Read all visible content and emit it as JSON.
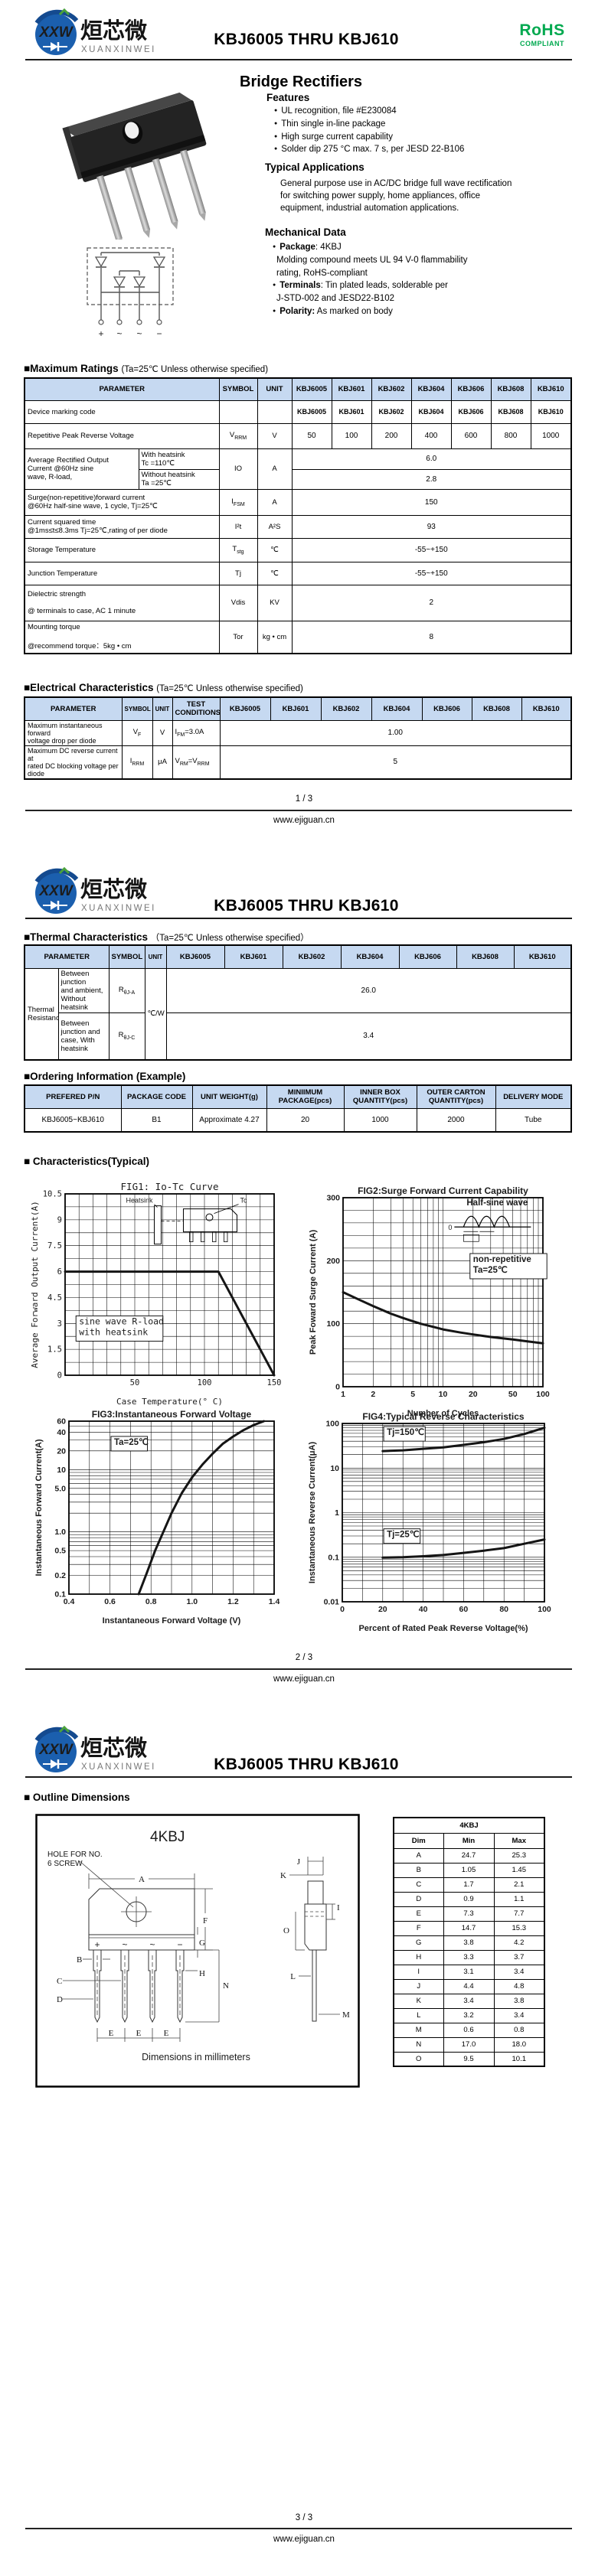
{
  "brand": {
    "logo_monogram": "XXW",
    "logo_cn": "烜芯微",
    "logo_en": "XUANXINWEI",
    "doc_title": "KBJ6005 THRU KBJ610",
    "rohs": "RoHS",
    "rohs_sub": "COMPLIANT",
    "colors": {
      "brand_blue": "#1b5fae",
      "rohs_green": "#00a94f",
      "table_header": "#c6d9f1"
    }
  },
  "models": [
    "KBJ6005",
    "KBJ601",
    "KBJ602",
    "KBJ604",
    "KBJ606",
    "KBJ608",
    "KBJ610"
  ],
  "page1": {
    "product_title": "Bridge Rectifiers",
    "features": {
      "title": "Features",
      "items": [
        {
          "m": "●",
          "t": "UL recognition, file #E230084"
        },
        {
          "m": "●",
          "t": "Thin single in-line package"
        },
        {
          "m": "●",
          "t": "High surge current capability"
        },
        {
          "m": "●",
          "t": "Solder dip 275 °C max. 7 s, per JESD 22-B106"
        }
      ]
    },
    "applications": {
      "title": "Typical  Applications",
      "text": "General purpose use in AC/DC bridge full wave rectification\nfor switching power supply, home appliances, office\nequipment, industrial automation applications."
    },
    "mechanical": {
      "title": "Mechanical Data",
      "items": [
        {
          "m": "●",
          "b": "Package",
          "t": ": 4KBJ"
        },
        {
          "m": "",
          "b": "",
          "t": "Molding compound meets UL 94 V-0 flammability"
        },
        {
          "m": "",
          "b": "",
          "t": "rating, RoHS-compliant"
        },
        {
          "m": "●",
          "b": "Terminals",
          "t": ": Tin plated leads, solderable per"
        },
        {
          "m": "",
          "b": "",
          "t": "J-STD-002 and JESD22-B102"
        },
        {
          "m": "●",
          "b": "Polarity:",
          "t": " As marked on body"
        }
      ]
    },
    "schematic_terminals": [
      "+",
      "~",
      "~",
      "−"
    ],
    "max_ratings": {
      "title": "■Maximum Ratings",
      "subtitle": "(Ta=25℃ Unless otherwise specified)",
      "col_param": "PARAMETER",
      "col_symbol": "SYMBOL",
      "col_unit": "UNIT",
      "rows": {
        "marking": {
          "param": "Device marking code"
        },
        "vrrm": {
          "param": "Repetitive Peak Reverse Voltage",
          "sym": {
            "p": "V",
            "s": "RRM"
          },
          "unit": "V",
          "values": [
            "50",
            "100",
            "200",
            "400",
            "600",
            "800",
            "1000"
          ]
        },
        "io": {
          "param": "Average Rectified Output\nCurrent @60Hz sine\nwave, R-load,",
          "sub1": "With heatsink\nTc =110℃",
          "sub2": "Without heatsink\nTa =25℃",
          "sym": {
            "p": "IO"
          },
          "unit": "A",
          "v1": "6.0",
          "v2": "2.8"
        },
        "ifsm": {
          "param": "Surge(non-repetitive)forward current\n@60Hz half-sine wave, 1 cycle,  Tj=25℃",
          "sym": {
            "p": "I",
            "s": "FSM"
          },
          "unit": "A",
          "value": "150"
        },
        "i2t": {
          "param": "Current squared time\n@1ms≤t≤8.3ms Tj=25℃,rating of per diode",
          "sym": {
            "p": "I²t"
          },
          "unit": "A²S",
          "value": "93"
        },
        "tstg": {
          "param": "Storage Temperature",
          "sym": {
            "p": "T",
            "s": "stg"
          },
          "unit": "℃",
          "value": "-55~+150"
        },
        "tj": {
          "param": "Junction Temperature",
          "sym": {
            "p": "Tj"
          },
          "unit": "℃",
          "value": "-55~+150"
        },
        "vdis": {
          "param": "Dielectric strength\n\n@ terminals to case, AC 1 minute",
          "sym": {
            "p": "Vdis"
          },
          "unit": "KV",
          "value": "2"
        },
        "tor": {
          "param": "Mounting torque\n\n@recommend torque：5kg • cm",
          "sym": {
            "p": "Tor"
          },
          "unit": "kg • cm",
          "value": "8"
        }
      }
    },
    "elec": {
      "title": "■Electrical Characteristics",
      "subtitle": "(Ta=25℃ Unless otherwise specified)",
      "col_param": "PARAMETER",
      "col_symbol": "SYMBOL",
      "col_unit": "UNIT",
      "col_test": "TEST\nCONDITIONS",
      "rows": {
        "vf": {
          "param": "Maximum instantaneous forward\nvoltage drop per diode",
          "sym": {
            "p": "V",
            "s": "F"
          },
          "unit": "V",
          "test": {
            "p": "I",
            "s": "FM",
            "t": "=3.0A"
          },
          "value": "1.00"
        },
        "irrm": {
          "param": "Maximum DC reverse current at\nrated DC blocking voltage per diode",
          "sym": {
            "p": "I",
            "s": "RRM"
          },
          "unit": "μA",
          "test": {
            "p": "V",
            "s": "RM",
            "t": "=V",
            "s2": "RRM"
          },
          "value": "5"
        }
      }
    },
    "footer": {
      "page": "1 / 3",
      "site": "www.ejiguan.cn"
    }
  },
  "page2": {
    "thermal": {
      "title": "■Thermal Characteristics",
      "subtitle": "（Ta=25℃ Unless otherwise specified）",
      "col_param": "PARAMETER",
      "col_symbol": "SYMBOL",
      "col_unit": "UNIT",
      "group": "Thermal\nResistance",
      "unit": "℃/W",
      "rows": {
        "rja": {
          "desc": "Between junction\nand ambient,\nWithout heatsink",
          "sym": {
            "p": "R",
            "s": "θJ-A"
          },
          "value": "26.0"
        },
        "rjc": {
          "desc": "Between\njunction and\ncase, With\nheatsink",
          "sym": {
            "p": "R",
            "s": "θJ-C"
          },
          "value": "3.4"
        }
      }
    },
    "ordering": {
      "title": "■Ordering Information (Example)",
      "headers": [
        "PREFERED P/N",
        "PACKAGE CODE",
        "UNIT WEIGHT(g)",
        "MINIIMUM\nPACKAGE(pcs)",
        "INNER BOX\nQUANTITY(pcs)",
        "OUTER CARTON\nQUANTITY(pcs)",
        "DELIVERY MODE"
      ],
      "row": [
        "KBJ6005~KBJ610",
        "B1",
        "Approximate 4.27",
        "20",
        "1000",
        "2000",
        "Tube"
      ]
    },
    "charts_title": "■ Characteristics(Typical)",
    "footer": {
      "page": "2 / 3",
      "site": "www.ejiguan.cn"
    }
  },
  "page3": {
    "outline_title": "■ Outline Dimensions",
    "drawing": {
      "title": "4KBJ",
      "hole_note": "HOLE FOR NO.\n6 SCREW",
      "note": "Dimensions in millimeters",
      "polarity": [
        "+",
        "~",
        "~",
        "−"
      ],
      "letters": {
        "a": "A",
        "b": "B",
        "c": "C",
        "d": "D",
        "e": "E",
        "f": "F",
        "g": "G",
        "h": "H",
        "i": "I",
        "j": "J",
        "k": "K",
        "l": "L",
        "m": "M",
        "n": "N",
        "o": "O"
      }
    },
    "dim_table": {
      "title": "4KBJ",
      "headers": [
        "Dim",
        "Min",
        "Max"
      ],
      "rows": [
        {
          "d": "A",
          "min": "24.7",
          "max": "25.3"
        },
        {
          "d": "B",
          "min": "1.05",
          "max": "1.45"
        },
        {
          "d": "C",
          "min": "1.7",
          "max": "2.1"
        },
        {
          "d": "D",
          "min": "0.9",
          "max": "1.1"
        },
        {
          "d": "E",
          "min": "7.3",
          "max": "7.7"
        },
        {
          "d": "F",
          "min": "14.7",
          "max": "15.3"
        },
        {
          "d": "G",
          "min": "3.8",
          "max": "4.2"
        },
        {
          "d": "H",
          "min": "3.3",
          "max": "3.7"
        },
        {
          "d": "I",
          "min": "3.1",
          "max": "3.4"
        },
        {
          "d": "J",
          "min": "4.4",
          "max": "4.8"
        },
        {
          "d": "K",
          "min": "3.4",
          "max": "3.8"
        },
        {
          "d": "L",
          "min": "3.2",
          "max": "3.4"
        },
        {
          "d": "M",
          "min": "0.6",
          "max": "0.8"
        },
        {
          "d": "N",
          "min": "17.0",
          "max": "18.0"
        },
        {
          "d": "O",
          "min": "9.5",
          "max": "10.1"
        }
      ]
    },
    "footer": {
      "page": "3 / 3",
      "site": "www.ejiguan.cn"
    }
  },
  "chart_data": [
    {
      "type": "line",
      "font": "mono",
      "title": "FIG1: Io-Tc Curve",
      "xlabel": "Case Temperature(° C)",
      "ylabel": "Average Forward Output Current(A)",
      "x": {
        "scale": "linear",
        "min": 0,
        "max": 150,
        "minor": 10,
        "ticks": [
          50,
          100,
          150
        ],
        "tick_labels": [
          "50",
          "100",
          "150"
        ]
      },
      "y": {
        "scale": "linear",
        "min": 0,
        "max": 10.5,
        "minor": 0.75,
        "ticks": [
          0,
          1.5,
          3,
          4.5,
          6,
          7.5,
          9,
          10.5
        ],
        "tick_labels": [
          "0",
          "1.5",
          "3",
          "4.5",
          "6",
          "7.5",
          "9",
          "10.5"
        ]
      },
      "series": [
        {
          "name": "Io with heatsink",
          "points": [
            [
              0,
              6
            ],
            [
              110,
              6
            ],
            [
              150,
              0
            ]
          ]
        }
      ],
      "annotations": [
        {
          "x": 10,
          "y": 2.95,
          "lines": [
            "sine wave R-load",
            "with heatsink"
          ],
          "box": true
        }
      ],
      "insets": [
        {
          "kind": "heatsink",
          "x": 64,
          "y": 10.25,
          "labels": [
            "Heatsink",
            "Tc"
          ]
        }
      ]
    },
    {
      "type": "line",
      "font": "sans",
      "title": "FIG2:Surge Forward Current Capability",
      "xlabel": "Number of Cycles",
      "ylabel": "Peak Foward Surge Current (A)",
      "x": {
        "scale": "log",
        "min": 1,
        "max": 100,
        "ticks": [
          1,
          2,
          5,
          10,
          20,
          50,
          100
        ],
        "tick_labels": [
          "1",
          "2",
          "5",
          "10",
          "20",
          "50",
          "100"
        ]
      },
      "y": {
        "scale": "linear",
        "min": 0,
        "max": 300,
        "minor": 20,
        "ticks": [
          0,
          100,
          200,
          300
        ],
        "tick_labels": [
          "0",
          "100",
          "200",
          "300"
        ]
      },
      "series": [
        {
          "name": "IFSM non-repetitive",
          "points": [
            [
              1,
              150
            ],
            [
              1.5,
              137
            ],
            [
              2,
              128
            ],
            [
              3,
              116
            ],
            [
              4,
              109
            ],
            [
              5,
              104
            ],
            [
              6,
              100
            ],
            [
              8,
              95
            ],
            [
              10,
              91
            ],
            [
              15,
              86
            ],
            [
              20,
              83
            ],
            [
              30,
              79
            ],
            [
              50,
              75
            ],
            [
              70,
              72
            ],
            [
              100,
              69
            ]
          ]
        }
      ],
      "annotations": [
        {
          "x": 20,
          "y": 198,
          "lines": [
            "non-repetitive",
            "Ta=25℃"
          ],
          "box": true
        }
      ],
      "insets": [
        {
          "kind": "halfsine",
          "x": 13,
          "y": 290,
          "labels": [
            "Half-sine wave",
            "0"
          ]
        }
      ]
    },
    {
      "type": "line",
      "font": "sans",
      "title": "FIG3:Instantaneous Forward Voltage",
      "xlabel": "Instantaneous Forward Voltage (V)",
      "ylabel": "Instantaneous Forward Current(A)",
      "x": {
        "scale": "linear",
        "min": 0.4,
        "max": 1.4,
        "minor": 0.1,
        "ticks": [
          0.4,
          0.6,
          0.8,
          1.0,
          1.2,
          1.4
        ],
        "tick_labels": [
          "0.4",
          "0.6",
          "0.8",
          "1.0",
          "1.2",
          "1.4"
        ]
      },
      "y": {
        "scale": "log",
        "min": 0.1,
        "max": 60,
        "ticks": [
          0.1,
          0.2,
          0.5,
          1.0,
          5.0,
          10,
          20,
          40,
          60
        ],
        "tick_labels": [
          "0.1",
          "0.2",
          "0.5",
          "1.0",
          "5.0",
          "10",
          "20",
          "40",
          "60"
        ]
      },
      "series": [
        {
          "name": "VF Ta=25℃",
          "points": [
            [
              0.74,
              0.1
            ],
            [
              0.78,
              0.22
            ],
            [
              0.82,
              0.5
            ],
            [
              0.86,
              1.0
            ],
            [
              0.9,
              2.0
            ],
            [
              0.95,
              4.2
            ],
            [
              1.0,
              7.5
            ],
            [
              1.05,
              12
            ],
            [
              1.1,
              18
            ],
            [
              1.15,
              26
            ],
            [
              1.2,
              34
            ],
            [
              1.25,
              43
            ],
            [
              1.3,
              52
            ],
            [
              1.35,
              60
            ]
          ]
        }
      ],
      "annotations": [
        {
          "x": 0.62,
          "y": 25,
          "lines": [
            "Ta=25℃"
          ],
          "box": true
        }
      ]
    },
    {
      "type": "line",
      "font": "sans",
      "title": "FIG4:Typical Reverse Characteristics",
      "xlabel": "Percent of Rated Peak Reverse Voltage(%)",
      "ylabel": "Instantaneous Reverse Current(μA)",
      "x": {
        "scale": "linear",
        "min": 0,
        "max": 100,
        "minor": 10,
        "ticks": [
          0,
          20,
          40,
          60,
          80,
          100
        ],
        "tick_labels": [
          "0",
          "20",
          "40",
          "60",
          "80",
          "100"
        ]
      },
      "y": {
        "scale": "log",
        "min": 0.01,
        "max": 100,
        "ticks": [
          0.01,
          0.1,
          1,
          10,
          100
        ],
        "tick_labels": [
          "0.01",
          "0.1",
          "1",
          "10",
          "100"
        ]
      },
      "series": [
        {
          "name": "Tj=150℃",
          "points": [
            [
              20,
              24
            ],
            [
              30,
              25
            ],
            [
              40,
              27
            ],
            [
              50,
              29
            ],
            [
              60,
              33
            ],
            [
              70,
              38
            ],
            [
              80,
              45
            ],
            [
              90,
              58
            ],
            [
              100,
              80
            ]
          ]
        },
        {
          "name": "Tj=25℃",
          "points": [
            [
              20,
              0.098
            ],
            [
              30,
              0.1
            ],
            [
              40,
              0.105
            ],
            [
              50,
              0.112
            ],
            [
              60,
              0.125
            ],
            [
              70,
              0.14
            ],
            [
              80,
              0.16
            ],
            [
              90,
              0.2
            ],
            [
              100,
              0.25
            ]
          ]
        }
      ],
      "annotations": [
        {
          "x": 22,
          "y": 55,
          "lines": [
            "Tj=150℃"
          ],
          "box": true
        },
        {
          "x": 22,
          "y": 0.28,
          "lines": [
            "Tj=25℃"
          ],
          "box": true
        }
      ]
    }
  ]
}
